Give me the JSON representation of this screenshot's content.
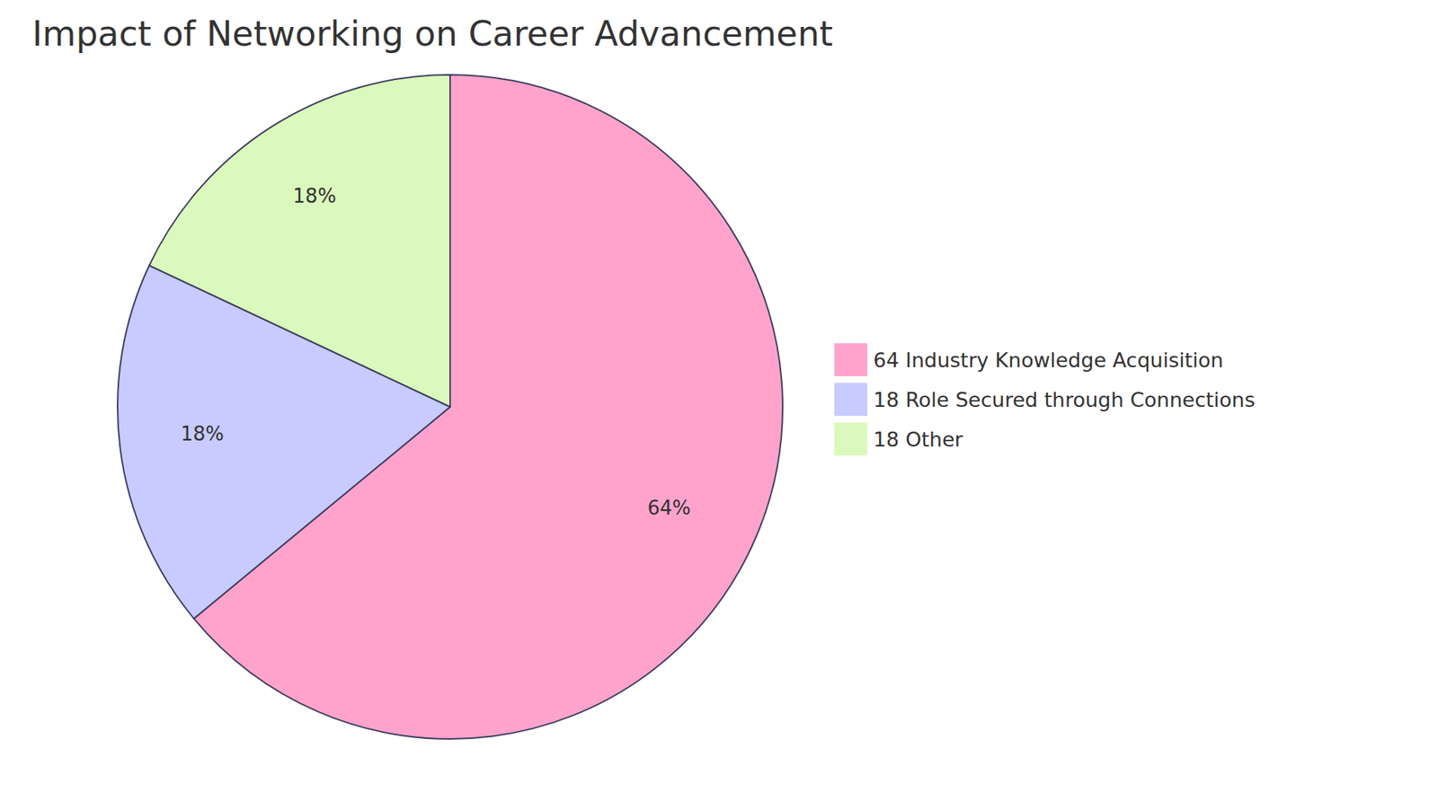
{
  "chart_data": {
    "type": "pie",
    "title": "Impact of Networking on Career Advancement",
    "categories": [
      "64 Industry Knowledge Acquisition",
      "18 Role Secured through Connections",
      "18 Other"
    ],
    "values": [
      64,
      18,
      18
    ],
    "value_labels": [
      "64%",
      "18%",
      "18%"
    ],
    "colors": [
      "#FFA3CD",
      "#C7CBFF",
      "#DAF9BC"
    ],
    "data_labels": true,
    "legend": "right"
  }
}
